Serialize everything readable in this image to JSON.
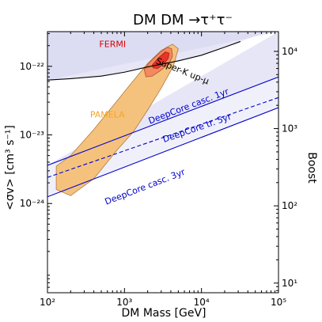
{
  "chart_data": {
    "type": "line",
    "title": "DM DM →τ⁺τ⁻",
    "xlabel": "DM Mass [GeV]",
    "ylabel": "<σv> [cm³ s⁻¹]",
    "y2label": "Boost",
    "xscale": "log",
    "yscale": "log",
    "xlim": [
      100,
      100000
    ],
    "ylim": [
      5e-26,
      3.2e-22
    ],
    "y2lim": [
      7.5,
      18000
    ],
    "x_ticks": [
      {
        "value": 100,
        "label": "10²"
      },
      {
        "value": 1000,
        "label": "10³"
      },
      {
        "value": 10000,
        "label": "10⁴"
      },
      {
        "value": 100000,
        "label": "10⁵"
      }
    ],
    "y_ticks": [
      {
        "value": 1e-24,
        "label": "10⁻²⁴"
      },
      {
        "value": 1e-23,
        "label": "10⁻²³"
      },
      {
        "value": 1e-22,
        "label": "10⁻²²"
      }
    ],
    "y2_ticks": [
      {
        "value": 10,
        "label": "10¹"
      },
      {
        "value": 100,
        "label": "10²"
      },
      {
        "value": 1000,
        "label": "10³"
      },
      {
        "value": 10000,
        "label": "10⁴"
      }
    ],
    "series": [
      {
        "name": "Super-K up-μ",
        "color": "#000000",
        "style": "solid",
        "x": [
          100,
          200,
          500,
          1000,
          2000,
          5000,
          10000,
          20000,
          32000
        ],
        "y": [
          6.3e-23,
          6.6e-23,
          7.2e-23,
          8.2e-23,
          9.8e-23,
          1.2e-22,
          1.45e-22,
          1.9e-22,
          2.3e-22
        ]
      },
      {
        "name": "DeepCore casc. 1yr",
        "color": "#0000cc",
        "style": "solid",
        "x": [
          100,
          100000
        ],
        "y": [
          3.6e-24,
          7e-23
        ]
      },
      {
        "name": "DeepCore tr. 5yr",
        "color": "#0000cc",
        "style": "dashed",
        "x": [
          100,
          100000
        ],
        "y": [
          2.4e-24,
          3.5e-23
        ]
      },
      {
        "name": "DeepCore casc. 3yr",
        "color": "#0000cc",
        "style": "solid",
        "x": [
          100,
          100000
        ],
        "y": [
          1.25e-24,
          2.5e-23
        ]
      }
    ],
    "regions": [
      {
        "name": "PAMELA",
        "color": "#f5c27d",
        "edge": "#b07a40",
        "x": [
          130,
          200,
          400,
          700,
          1200,
          2000,
          3000,
          4200,
          5000,
          4300,
          3000,
          2000,
          1300,
          800,
          400,
          200,
          130
        ],
        "y": [
          3.5e-24,
          5e-24,
          1.2e-23,
          2.6e-23,
          5.5e-23,
          1.1e-22,
          1.7e-22,
          2.1e-22,
          1.8e-22,
          1e-22,
          4.8e-23,
          2.3e-23,
          1.1e-23,
          6e-24,
          2.3e-24,
          1.3e-24,
          1.6e-24
        ]
      },
      {
        "name": "FERMI 3σ",
        "color": "#f4895f",
        "edge": "#b05030",
        "x": [
          1800,
          2200,
          2900,
          3600,
          4100,
          4200,
          3800,
          3000,
          2300,
          1900
        ],
        "y": [
          9e-23,
          1.2e-22,
          1.6e-22,
          1.9e-22,
          1.8e-22,
          1.4e-22,
          1.1e-22,
          8.8e-23,
          7.2e-23,
          7e-23
        ]
      },
      {
        "name": "FERMI 1σ",
        "color": "#e8342a",
        "edge": "#a02010",
        "x": [
          2300,
          2800,
          3400,
          3800,
          3700,
          3200,
          2700,
          2350
        ],
        "y": [
          1.05e-22,
          1.35e-22,
          1.62e-22,
          1.55e-22,
          1.3e-22,
          1.08e-22,
          9.3e-23,
          9.5e-23
        ]
      }
    ],
    "annotations": [
      {
        "text": "FERMI",
        "color": "#dd0000",
        "x": 700,
        "y": 1.9e-22
      },
      {
        "text": "Super-K up-μ",
        "color": "#000000",
        "x": 5500,
        "y": 7.8e-23
      },
      {
        "text": "PAMELA",
        "color": "#f5a623",
        "x": 600,
        "y": 1.8e-23
      },
      {
        "text": "DeepCore casc. 1yr",
        "color": "#0000cc",
        "x": 7000,
        "y": 2.4e-23
      },
      {
        "text": "DeepCore tr. 5yr",
        "color": "#0000cc",
        "x": 9000,
        "y": 1.15e-23
      },
      {
        "text": "DeepCore casc. 3yr",
        "color": "#0000cc",
        "x": 1900,
        "y": 1.6e-24
      }
    ]
  }
}
